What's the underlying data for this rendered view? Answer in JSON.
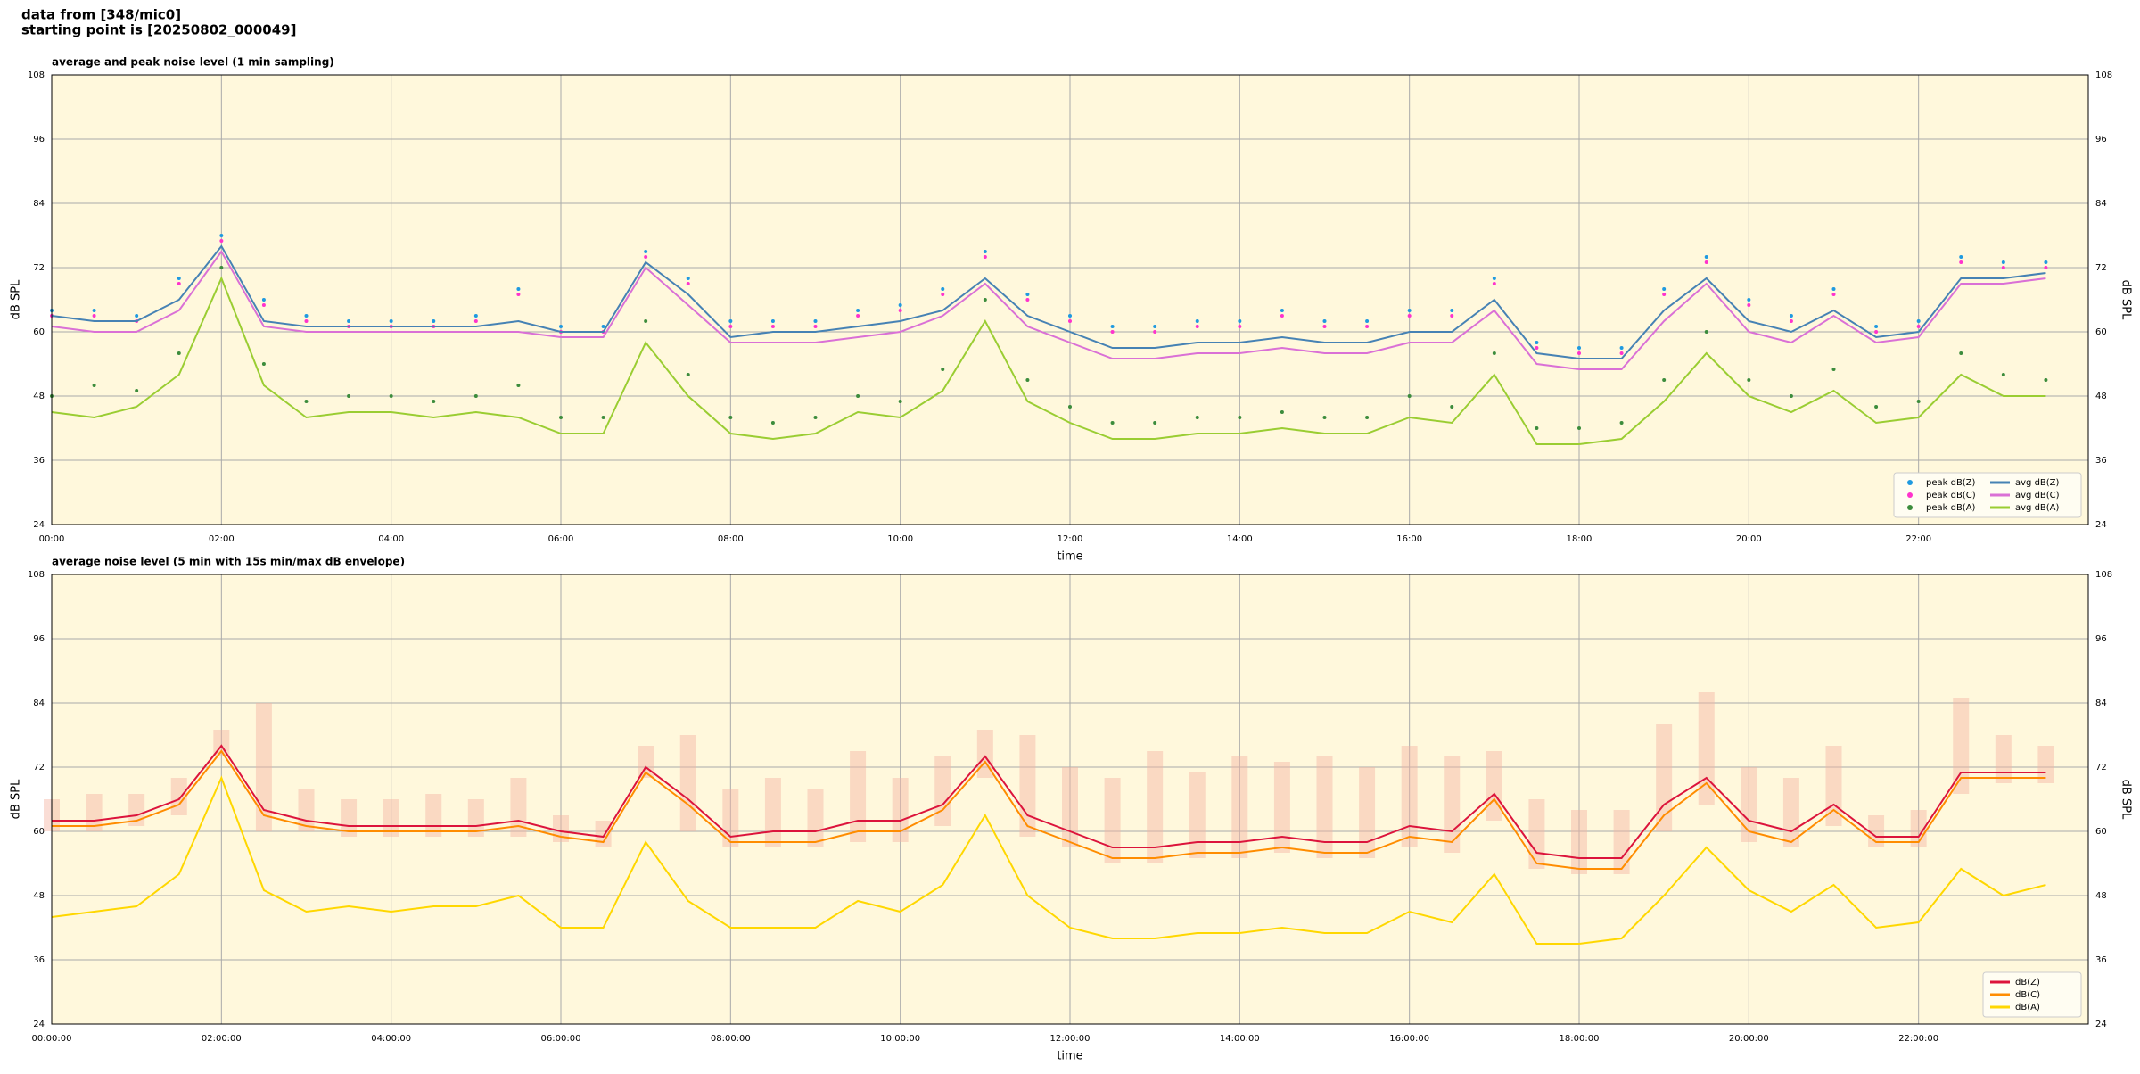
{
  "header": [
    "data from [348/mic0]",
    "starting point is [20250802_000049]"
  ],
  "chart_data": [
    {
      "type": "line",
      "title": "average and peak noise level (1 min sampling)",
      "x_label": "time",
      "y_label": "dB SPL",
      "x": [
        0,
        0.5,
        1,
        1.5,
        2,
        2.5,
        3,
        3.5,
        4,
        4.5,
        5,
        5.5,
        6,
        6.5,
        7,
        7.5,
        8,
        8.5,
        9,
        9.5,
        10,
        10.5,
        11,
        11.5,
        12,
        12.5,
        13,
        13.5,
        14,
        14.5,
        15,
        15.5,
        16,
        16.5,
        17,
        17.5,
        18,
        18.5,
        19,
        19.5,
        20,
        20.5,
        21,
        21.5,
        22,
        22.5,
        23,
        23.5
      ],
      "xlim": [
        0,
        24
      ],
      "xticks": [
        {
          "value": 0,
          "label": "00:00"
        },
        {
          "value": 2,
          "label": "02:00"
        },
        {
          "value": 4,
          "label": "04:00"
        },
        {
          "value": 6,
          "label": "06:00"
        },
        {
          "value": 8,
          "label": "08:00"
        },
        {
          "value": 10,
          "label": "10:00"
        },
        {
          "value": 12,
          "label": "12:00"
        },
        {
          "value": 14,
          "label": "14:00"
        },
        {
          "value": 16,
          "label": "16:00"
        },
        {
          "value": 18,
          "label": "18:00"
        },
        {
          "value": 20,
          "label": "20:00"
        },
        {
          "value": 22,
          "label": "22:00"
        }
      ],
      "ylim": [
        24,
        108
      ],
      "yticks": [
        24,
        36,
        48,
        60,
        72,
        84,
        96,
        108
      ],
      "grid": true,
      "legend": "lower right",
      "legend_columns": 2,
      "series": [
        {
          "name": "peak dB(Z)",
          "kind": "scatter",
          "color": "#1f9ae0",
          "values": [
            64,
            64,
            63,
            70,
            78,
            66,
            63,
            62,
            62,
            62,
            63,
            68,
            61,
            61,
            75,
            70,
            62,
            62,
            62,
            64,
            65,
            68,
            75,
            67,
            63,
            61,
            61,
            62,
            62,
            64,
            62,
            62,
            64,
            64,
            70,
            58,
            57,
            57,
            68,
            74,
            66,
            63,
            68,
            61,
            62,
            74,
            73,
            73
          ]
        },
        {
          "name": "peak dB(C)",
          "kind": "scatter",
          "color": "#ff33cc",
          "values": [
            63,
            63,
            62,
            69,
            77,
            65,
            62,
            61,
            61,
            61,
            62,
            67,
            60,
            60,
            74,
            69,
            61,
            61,
            61,
            63,
            64,
            67,
            74,
            66,
            62,
            60,
            60,
            61,
            61,
            63,
            61,
            61,
            63,
            63,
            69,
            57,
            56,
            56,
            67,
            73,
            65,
            62,
            67,
            60,
            61,
            73,
            72,
            72
          ]
        },
        {
          "name": "peak dB(A)",
          "kind": "scatter",
          "color": "#3c8c3c",
          "values": [
            48,
            50,
            49,
            56,
            72,
            54,
            47,
            48,
            48,
            47,
            48,
            50,
            44,
            44,
            62,
            52,
            44,
            43,
            44,
            48,
            47,
            53,
            66,
            51,
            46,
            43,
            43,
            44,
            44,
            45,
            44,
            44,
            48,
            46,
            56,
            42,
            42,
            43,
            51,
            60,
            51,
            48,
            53,
            46,
            47,
            56,
            52,
            51
          ]
        },
        {
          "name": "avg dB(Z)",
          "kind": "line",
          "color": "#4682b4",
          "values": [
            63,
            62,
            62,
            66,
            76,
            62,
            61,
            61,
            61,
            61,
            61,
            62,
            60,
            60,
            73,
            67,
            59,
            60,
            60,
            61,
            62,
            64,
            70,
            63,
            60,
            57,
            57,
            58,
            58,
            59,
            58,
            58,
            60,
            60,
            66,
            56,
            55,
            55,
            64,
            70,
            62,
            60,
            64,
            59,
            60,
            70,
            70,
            71
          ]
        },
        {
          "name": "avg dB(C)",
          "kind": "line",
          "color": "#da70d6",
          "values": [
            61,
            60,
            60,
            64,
            75,
            61,
            60,
            60,
            60,
            60,
            60,
            60,
            59,
            59,
            72,
            65,
            58,
            58,
            58,
            59,
            60,
            63,
            69,
            61,
            58,
            55,
            55,
            56,
            56,
            57,
            56,
            56,
            58,
            58,
            64,
            54,
            53,
            53,
            62,
            69,
            60,
            58,
            63,
            58,
            59,
            69,
            69,
            70
          ]
        },
        {
          "name": "avg dB(A)",
          "kind": "line",
          "color": "#9acd32",
          "values": [
            45,
            44,
            46,
            52,
            70,
            50,
            44,
            45,
            45,
            44,
            45,
            44,
            41,
            41,
            58,
            48,
            41,
            40,
            41,
            45,
            44,
            49,
            62,
            47,
            43,
            40,
            40,
            41,
            41,
            42,
            41,
            41,
            44,
            43,
            52,
            39,
            39,
            40,
            47,
            56,
            48,
            45,
            49,
            43,
            44,
            52,
            48,
            48
          ]
        }
      ]
    },
    {
      "type": "line",
      "title": "average noise level (5 min with 15s min/max dB envelope)",
      "x_label": "time",
      "y_label": "dB SPL",
      "x": [
        0,
        0.5,
        1,
        1.5,
        2,
        2.5,
        3,
        3.5,
        4,
        4.5,
        5,
        5.5,
        6,
        6.5,
        7,
        7.5,
        8,
        8.5,
        9,
        9.5,
        10,
        10.5,
        11,
        11.5,
        12,
        12.5,
        13,
        13.5,
        14,
        14.5,
        15,
        15.5,
        16,
        16.5,
        17,
        17.5,
        18,
        18.5,
        19,
        19.5,
        20,
        20.5,
        21,
        21.5,
        22,
        22.5,
        23,
        23.5
      ],
      "xlim": [
        0,
        24
      ],
      "xticks": [
        {
          "value": 0,
          "label": "00:00:00"
        },
        {
          "value": 2,
          "label": "02:00:00"
        },
        {
          "value": 4,
          "label": "04:00:00"
        },
        {
          "value": 6,
          "label": "06:00:00"
        },
        {
          "value": 8,
          "label": "08:00:00"
        },
        {
          "value": 10,
          "label": "10:00:00"
        },
        {
          "value": 12,
          "label": "12:00:00"
        },
        {
          "value": 14,
          "label": "14:00:00"
        },
        {
          "value": 16,
          "label": "16:00:00"
        },
        {
          "value": 18,
          "label": "18:00:00"
        },
        {
          "value": 20,
          "label": "20:00:00"
        },
        {
          "value": 22,
          "label": "22:00:00"
        }
      ],
      "ylim": [
        24,
        108
      ],
      "yticks": [
        24,
        36,
        48,
        60,
        72,
        84,
        96,
        108
      ],
      "grid": true,
      "legend": "lower right",
      "legend_columns": 1,
      "envelope": {
        "color": "#f4b4a4",
        "lower": [
          60,
          60,
          61,
          63,
          74,
          60,
          60,
          59,
          59,
          59,
          59,
          59,
          58,
          57,
          70,
          60,
          57,
          57,
          57,
          58,
          58,
          61,
          70,
          59,
          57,
          54,
          54,
          55,
          55,
          56,
          55,
          55,
          57,
          56,
          62,
          53,
          52,
          52,
          60,
          65,
          58,
          57,
          61,
          57,
          57,
          67,
          69,
          69
        ],
        "upper": [
          66,
          67,
          67,
          70,
          79,
          84,
          68,
          66,
          66,
          67,
          66,
          70,
          63,
          62,
          76,
          78,
          68,
          70,
          68,
          75,
          70,
          74,
          79,
          78,
          72,
          70,
          75,
          71,
          74,
          73,
          74,
          72,
          76,
          74,
          75,
          66,
          64,
          64,
          80,
          86,
          72,
          70,
          76,
          63,
          64,
          85,
          78,
          76
        ]
      },
      "series": [
        {
          "name": "dB(Z)",
          "kind": "line",
          "color": "#dc143c",
          "values": [
            62,
            62,
            63,
            66,
            76,
            64,
            62,
            61,
            61,
            61,
            61,
            62,
            60,
            59,
            72,
            66,
            59,
            60,
            60,
            62,
            62,
            65,
            74,
            63,
            60,
            57,
            57,
            58,
            58,
            59,
            58,
            58,
            61,
            60,
            67,
            56,
            55,
            55,
            65,
            70,
            62,
            60,
            65,
            59,
            59,
            71,
            71,
            71
          ]
        },
        {
          "name": "dB(C)",
          "kind": "line",
          "color": "#ff8c00",
          "values": [
            61,
            61,
            62,
            65,
            75,
            63,
            61,
            60,
            60,
            60,
            60,
            61,
            59,
            58,
            71,
            65,
            58,
            58,
            58,
            60,
            60,
            64,
            73,
            61,
            58,
            55,
            55,
            56,
            56,
            57,
            56,
            56,
            59,
            58,
            66,
            54,
            53,
            53,
            63,
            69,
            60,
            58,
            64,
            58,
            58,
            70,
            70,
            70
          ]
        },
        {
          "name": "dB(A)",
          "kind": "line",
          "color": "#ffd700",
          "values": [
            44,
            45,
            46,
            52,
            70,
            49,
            45,
            46,
            45,
            46,
            46,
            48,
            42,
            42,
            58,
            47,
            42,
            42,
            42,
            47,
            45,
            50,
            63,
            48,
            42,
            40,
            40,
            41,
            41,
            42,
            41,
            41,
            45,
            43,
            52,
            39,
            39,
            40,
            48,
            57,
            49,
            45,
            50,
            42,
            43,
            53,
            48,
            50
          ]
        }
      ]
    }
  ]
}
